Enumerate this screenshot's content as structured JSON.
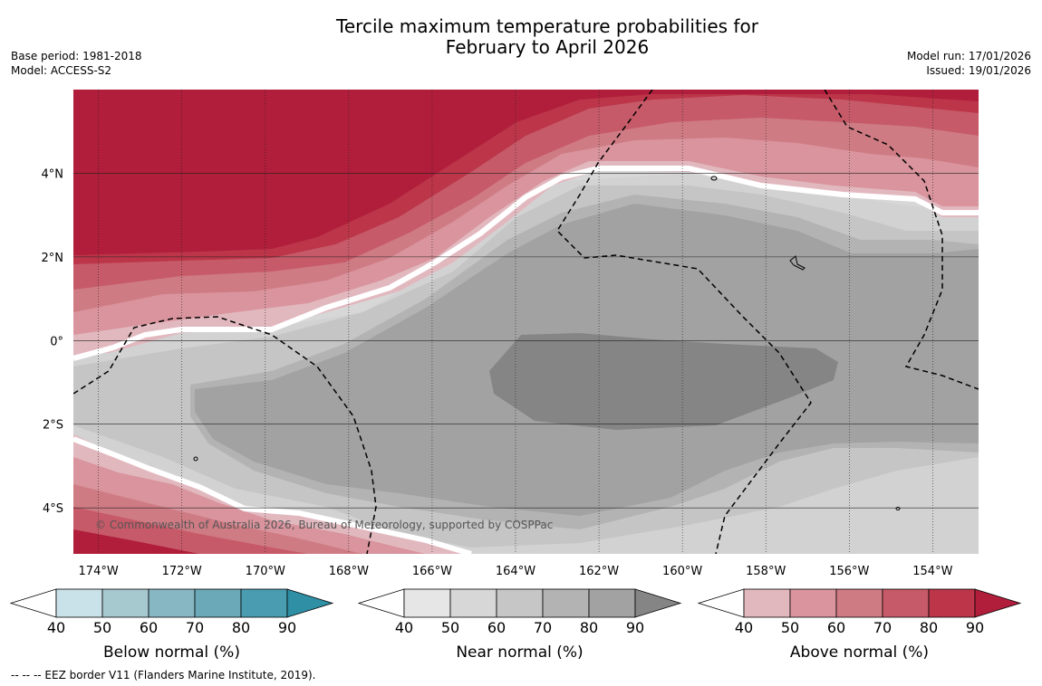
{
  "title_line1": "Tercile maximum temperature probabilities for",
  "title_line2": "February to April 2026",
  "base_period": "Base period: 1981-2018",
  "model": "Model: ACCESS-S2",
  "model_run": "Model run: 17/01/2026",
  "issued": "Issued: 19/01/2026",
  "copyright": "© Commonwealth of Australia 2026, Bureau of Meteorology, supported by COSPPac",
  "footer": "-- -- -- EEZ border V11 (Flanders Marine Institute, 2019).",
  "chart_data": {
    "type": "heatmap",
    "title": "Tercile maximum temperature probabilities for February to April 2026",
    "x_ticks": [
      "174°W",
      "172°W",
      "170°W",
      "168°W",
      "166°W",
      "164°W",
      "162°W",
      "160°W",
      "158°W",
      "156°W",
      "154°W"
    ],
    "y_ticks": [
      "4°N",
      "2°N",
      "0°",
      "2°S",
      "4°S"
    ],
    "x_range_deg": [
      -174.6,
      -152.9
    ],
    "y_range_deg": [
      -5.1,
      6.0
    ],
    "colorbars": [
      {
        "label": "Below normal (%)",
        "ticks": [
          "40",
          "50",
          "60",
          "70",
          "80",
          "90"
        ],
        "colors": [
          "#ffffff",
          "#c9e1e8",
          "#a6c8cf",
          "#88b7c4",
          "#6ba9b8",
          "#4a9db0",
          "#2e8fa5"
        ]
      },
      {
        "label": "Near normal (%)",
        "ticks": [
          "40",
          "50",
          "60",
          "70",
          "80",
          "90"
        ],
        "colors": [
          "#ffffff",
          "#e6e6e6",
          "#d7d7d7",
          "#c6c6c6",
          "#b3b3b3",
          "#a2a2a2",
          "#858585"
        ]
      },
      {
        "label": "Above normal (%)",
        "ticks": [
          "40",
          "50",
          "60",
          "70",
          "80",
          "90"
        ],
        "colors": [
          "#ffffff",
          "#e2b8bf",
          "#d9949d",
          "#cf7b84",
          "#c65a68",
          "#bc3549",
          "#b01e3b"
        ]
      }
    ],
    "regions": [
      {
        "category": "above",
        "level": "90+",
        "area": "north-west"
      },
      {
        "category": "near",
        "level": "90+",
        "area": "central-equatorial"
      },
      {
        "category": "above",
        "level": "50-80",
        "area": "south-west"
      }
    ]
  }
}
